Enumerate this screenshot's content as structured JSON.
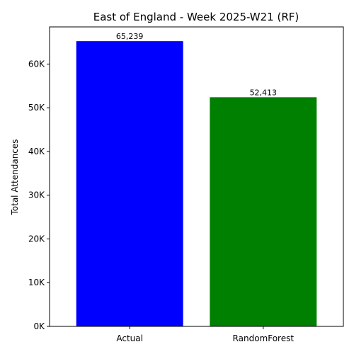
{
  "chart_data": {
    "type": "bar",
    "title": "East of England - Week 2025-W21 (RF)",
    "xlabel": "",
    "ylabel": "Total Attendances",
    "categories": [
      "Actual",
      "RandomForest"
    ],
    "values": [
      65239,
      52413
    ],
    "value_labels": [
      "65,239",
      "52,413"
    ],
    "colors": [
      "#0000ff",
      "#008000"
    ],
    "ylim": [
      0,
      68500
    ],
    "yticks": [
      0,
      10000,
      20000,
      30000,
      40000,
      50000,
      60000
    ],
    "ytick_labels": [
      "0K",
      "10K",
      "20K",
      "30K",
      "40K",
      "50K",
      "60K"
    ],
    "grid": false,
    "legend": false
  }
}
